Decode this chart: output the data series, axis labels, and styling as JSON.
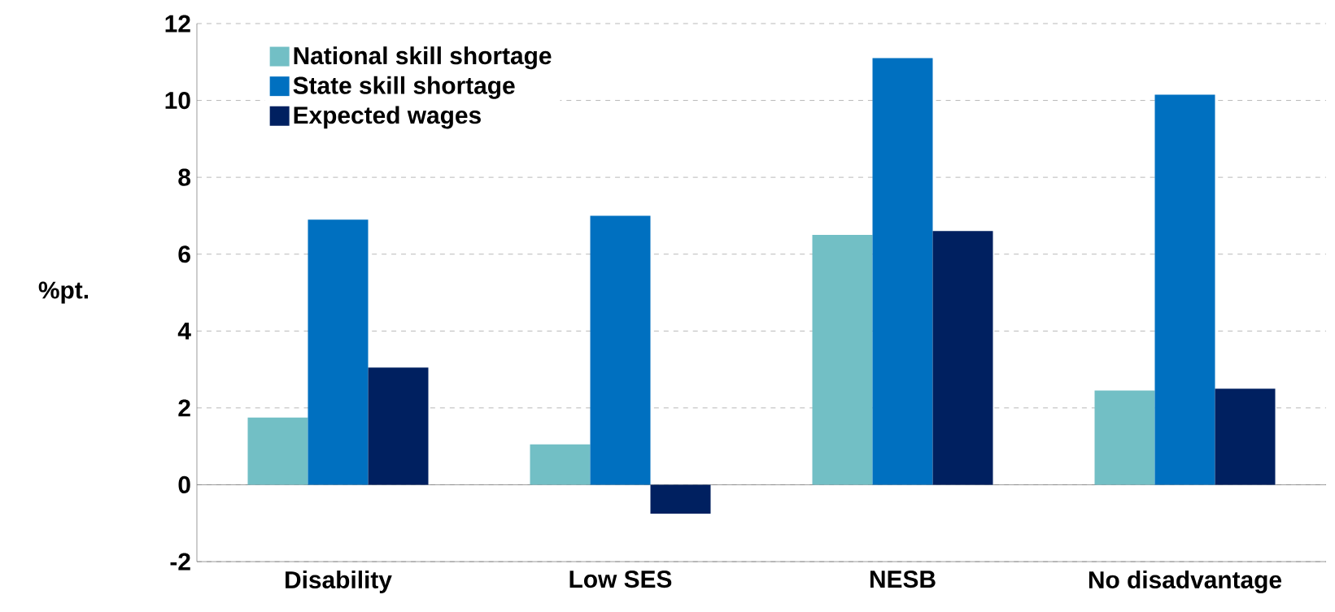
{
  "chart_data": {
    "type": "bar",
    "ylabel": "%pt.",
    "categories": [
      "Disability",
      "Low SES",
      "NESB",
      "No disadvantage"
    ],
    "series": [
      {
        "name": "National skill shortage",
        "color": "#72bfc5",
        "values": [
          1.75,
          1.05,
          6.5,
          2.45
        ]
      },
      {
        "name": "State skill shortage",
        "color": "#0070c0",
        "values": [
          6.9,
          7.0,
          11.1,
          10.15
        ]
      },
      {
        "name": "Expected wages",
        "color": "#002060",
        "values": [
          3.05,
          -0.75,
          6.6,
          2.5
        ]
      }
    ],
    "ylim": [
      -2,
      12
    ],
    "yticks": [
      -2,
      0,
      2,
      4,
      6,
      8,
      10,
      12
    ],
    "grid": "y",
    "legend": "top left"
  }
}
